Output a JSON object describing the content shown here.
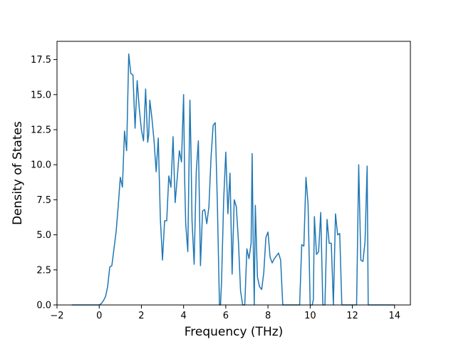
{
  "chart_data": {
    "type": "line",
    "title": "",
    "xlabel": "Frequency (THz)",
    "ylabel": "Density of States",
    "xlim": [
      -2.0,
      14.75
    ],
    "ylim": [
      0.0,
      18.8
    ],
    "xticks": [
      -2,
      0,
      2,
      4,
      6,
      8,
      10,
      12,
      14
    ],
    "xtick_labels": [
      "−2",
      "0",
      "2",
      "4",
      "6",
      "8",
      "10",
      "12",
      "14"
    ],
    "yticks": [
      0.0,
      2.5,
      5.0,
      7.5,
      10.0,
      12.5,
      15.0,
      17.5
    ],
    "ytick_labels": [
      "0.0",
      "2.5",
      "5.0",
      "7.5",
      "10.0",
      "12.5",
      "15.0",
      "17.5"
    ],
    "grid": false,
    "line_color": "#1f77b4",
    "series": [
      {
        "x": [
          -1.3,
          0.0,
          0.1,
          0.2,
          0.3,
          0.4,
          0.5,
          0.6,
          0.7,
          0.8,
          0.9,
          1.0,
          1.1,
          1.2,
          1.3,
          1.4,
          1.45,
          1.5,
          1.6,
          1.7,
          1.8,
          1.9,
          2.0,
          2.1,
          2.2,
          2.3,
          2.35,
          2.4,
          2.5,
          2.6,
          2.7,
          2.8,
          2.9,
          3.0,
          3.1,
          3.2,
          3.3,
          3.4,
          3.5,
          3.6,
          3.7,
          3.8,
          3.9,
          4.0,
          4.05,
          4.1,
          4.2,
          4.3,
          4.35,
          4.4,
          4.5,
          4.6,
          4.7,
          4.8,
          4.9,
          5.0,
          5.1,
          5.2,
          5.3,
          5.4,
          5.5,
          5.6,
          5.7,
          5.75,
          5.8,
          5.9,
          6.0,
          6.1,
          6.2,
          6.3,
          6.4,
          6.5,
          6.6,
          6.7,
          6.8,
          6.9,
          7.0,
          7.1,
          7.2,
          7.25,
          7.3,
          7.35,
          7.4,
          7.5,
          7.6,
          7.7,
          7.8,
          7.9,
          8.0,
          8.1,
          8.2,
          8.3,
          8.4,
          8.5,
          8.6,
          8.7,
          8.75,
          9.5,
          9.6,
          9.7,
          9.8,
          9.9,
          10.0,
          10.1,
          10.15,
          10.2,
          10.3,
          10.4,
          10.5,
          10.6,
          10.7,
          10.8,
          10.9,
          11.0,
          11.1,
          11.2,
          11.3,
          11.4,
          11.5,
          11.55,
          12.2,
          12.3,
          12.4,
          12.5,
          12.6,
          12.7,
          12.75,
          14.0
        ],
        "y": [
          0.0,
          0.0,
          0.1,
          0.3,
          0.6,
          1.3,
          2.7,
          2.8,
          4.0,
          5.2,
          7.0,
          9.1,
          8.4,
          12.4,
          11.0,
          17.9,
          17.2,
          16.5,
          16.4,
          12.6,
          16.0,
          14.0,
          12.5,
          11.7,
          15.4,
          11.6,
          12.2,
          14.6,
          13.3,
          11.7,
          9.5,
          11.9,
          6.1,
          3.2,
          6.0,
          6.0,
          9.2,
          8.4,
          12.0,
          7.3,
          9.1,
          11.0,
          10.2,
          15.0,
          9.0,
          5.8,
          3.8,
          14.6,
          11.0,
          6.0,
          2.9,
          9.5,
          11.7,
          2.8,
          6.7,
          6.8,
          5.8,
          7.0,
          10.5,
          12.8,
          13.0,
          7.3,
          0.0,
          0.0,
          1.7,
          7.5,
          10.9,
          6.5,
          9.4,
          2.2,
          7.5,
          7.0,
          4.5,
          1.0,
          0.0,
          0.0,
          4.0,
          3.3,
          4.4,
          10.8,
          4.5,
          0.0,
          7.1,
          2.0,
          1.3,
          1.1,
          2.3,
          4.8,
          5.2,
          3.4,
          3.0,
          3.3,
          3.5,
          3.7,
          3.2,
          0.0,
          0.0,
          0.0,
          4.3,
          4.2,
          9.1,
          7.2,
          0.0,
          0.0,
          0.4,
          6.3,
          3.6,
          3.8,
          6.6,
          0.0,
          0.0,
          6.1,
          4.4,
          4.4,
          0.0,
          6.5,
          5.0,
          5.1,
          0.0,
          0.0,
          0.0,
          10.0,
          3.2,
          3.1,
          4.5,
          9.9,
          0.0,
          0.0
        ]
      }
    ]
  }
}
